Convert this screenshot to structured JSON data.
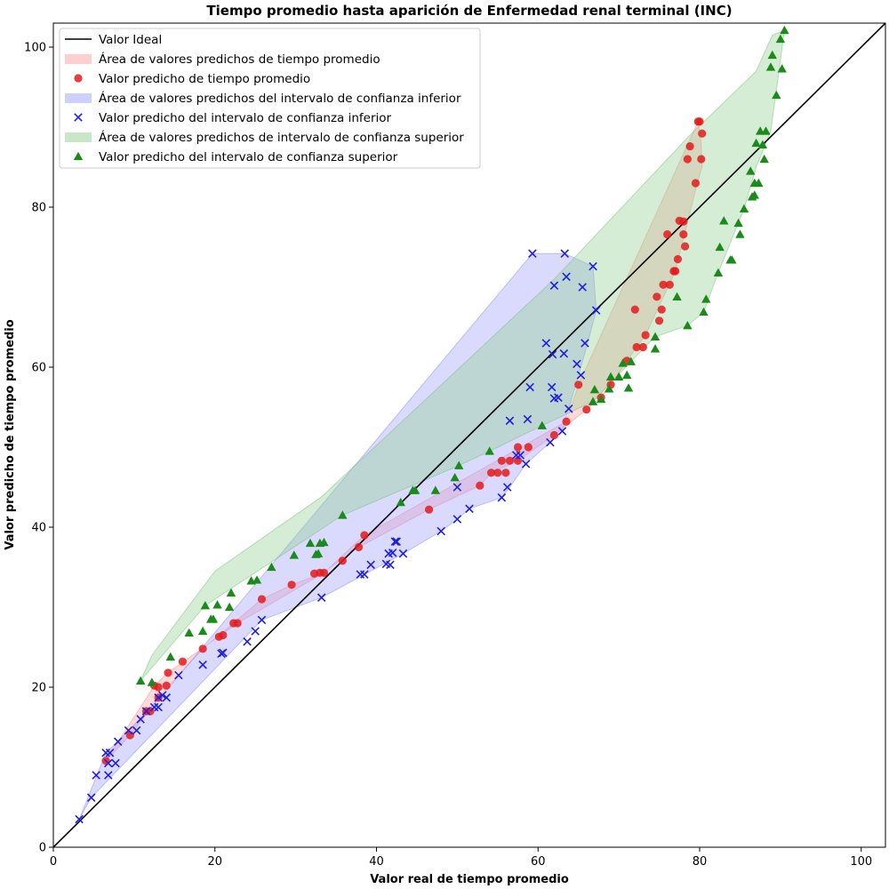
{
  "chart_data": {
    "type": "scatter",
    "title": "Tiempo promedio hasta aparición de Enfermedad renal terminal (INC)",
    "xlabel": "Valor real de tiempo promedio",
    "ylabel": "Valor predicho de tiempo promedio",
    "xlim": [
      0,
      103
    ],
    "ylim": [
      0,
      103
    ],
    "xticks": [
      0,
      20,
      40,
      60,
      80,
      100
    ],
    "yticks": [
      0,
      20,
      40,
      60,
      80,
      100
    ],
    "grid": false,
    "legend_position": "top-left",
    "colors": {
      "ideal": "#000000",
      "mean": "#e41a1c",
      "lower": "#1f1fe0",
      "upper": "#1a8a1a",
      "mean_area": "#ff9f9f",
      "lower_area": "#9f9fff",
      "upper_area": "#8fd08f"
    },
    "legend": [
      {
        "key": "ideal",
        "label": "Valor Ideal",
        "kind": "line"
      },
      {
        "key": "mean_area",
        "label": "Área de valores predichos de tiempo promedio",
        "kind": "patch"
      },
      {
        "key": "mean",
        "label": "Valor predicho de tiempo promedio",
        "kind": "circle"
      },
      {
        "key": "lower_area",
        "label": "Área de valores predichos del intervalo de confianza inferior",
        "kind": "patch"
      },
      {
        "key": "lower",
        "label": "Valor predicho del intervalo de confianza inferior",
        "kind": "cross"
      },
      {
        "key": "upper_area",
        "label": "Área de valores predichos de intervalo de confianza superior",
        "kind": "patch"
      },
      {
        "key": "upper",
        "label": "Valor predicho del intervalo de confianza superior",
        "kind": "triangle"
      }
    ],
    "ideal_line": [
      [
        0,
        0
      ],
      [
        103,
        103
      ]
    ],
    "series": [
      {
        "name": "Valor predicho de tiempo promedio",
        "marker": "circle",
        "points": [
          [
            6.5,
            10.8
          ],
          [
            9.5,
            14
          ],
          [
            11.5,
            17
          ],
          [
            12,
            17
          ],
          [
            12.5,
            20.2
          ],
          [
            13,
            18.7
          ],
          [
            13,
            20
          ],
          [
            14,
            20.2
          ],
          [
            14.2,
            21.8
          ],
          [
            16,
            23.2
          ],
          [
            18.5,
            24.8
          ],
          [
            20.5,
            26.3
          ],
          [
            21,
            26.5
          ],
          [
            22.3,
            28
          ],
          [
            22.8,
            28
          ],
          [
            25.8,
            31
          ],
          [
            29.5,
            32.8
          ],
          [
            32.3,
            34.2
          ],
          [
            33,
            34.3
          ],
          [
            33.5,
            34.3
          ],
          [
            35.8,
            35.8
          ],
          [
            37.8,
            37.5
          ],
          [
            38.5,
            39
          ],
          [
            46.5,
            42.2
          ],
          [
            52.8,
            45.2
          ],
          [
            54.2,
            46.8
          ],
          [
            55,
            46.8
          ],
          [
            55.5,
            48.3
          ],
          [
            56,
            46.8
          ],
          [
            56.5,
            48.3
          ],
          [
            57.5,
            50
          ],
          [
            57.5,
            48.3
          ],
          [
            58.8,
            50
          ],
          [
            62,
            51.5
          ],
          [
            63.5,
            53.2
          ],
          [
            65,
            57.8
          ],
          [
            66,
            54.7
          ],
          [
            67.8,
            56.2
          ],
          [
            69,
            57.8
          ],
          [
            71,
            60.8
          ],
          [
            72,
            67.2
          ],
          [
            72.2,
            62.5
          ],
          [
            73,
            62.5
          ],
          [
            73.3,
            64
          ],
          [
            74.7,
            68.8
          ],
          [
            75,
            65.8
          ],
          [
            75.3,
            67.2
          ],
          [
            75.5,
            70.3
          ],
          [
            76,
            76.6
          ],
          [
            76.3,
            70.3
          ],
          [
            76.8,
            72
          ],
          [
            77,
            72
          ],
          [
            77.3,
            73.5
          ],
          [
            77.5,
            78.3
          ],
          [
            78,
            78.2
          ],
          [
            78,
            76.6
          ],
          [
            78.2,
            75.1
          ],
          [
            78.5,
            86
          ],
          [
            78.8,
            87.6
          ],
          [
            79.5,
            83
          ],
          [
            79.8,
            90.7
          ],
          [
            80,
            90.7
          ],
          [
            80.2,
            86
          ],
          [
            80.3,
            89.2
          ]
        ]
      },
      {
        "name": "Valor predicho del intervalo de confianza inferior",
        "marker": "cross",
        "points": [
          [
            3.2,
            3.5
          ],
          [
            4.7,
            6.2
          ],
          [
            5.3,
            9
          ],
          [
            6.5,
            11.8
          ],
          [
            6.8,
            9
          ],
          [
            6.8,
            10.5
          ],
          [
            7,
            11.8
          ],
          [
            7.7,
            10.5
          ],
          [
            8,
            13.2
          ],
          [
            9.3,
            14.6
          ],
          [
            10.3,
            14.6
          ],
          [
            10.8,
            16
          ],
          [
            11.5,
            17
          ],
          [
            12.5,
            17.5
          ],
          [
            13,
            18.7
          ],
          [
            13,
            17.5
          ],
          [
            13.5,
            19
          ],
          [
            14,
            18.7
          ],
          [
            15.5,
            21.5
          ],
          [
            18.5,
            22.8
          ],
          [
            20.8,
            24.2
          ],
          [
            21,
            24.3
          ],
          [
            24,
            25.7
          ],
          [
            25,
            27
          ],
          [
            25.8,
            28.4
          ],
          [
            33.2,
            31.2
          ],
          [
            38,
            34.1
          ],
          [
            38.5,
            34.1
          ],
          [
            39.3,
            35.3
          ],
          [
            41.2,
            35.4
          ],
          [
            41.5,
            36.7
          ],
          [
            41.7,
            35.3
          ],
          [
            42,
            36.8
          ],
          [
            42.3,
            38.2
          ],
          [
            42.5,
            38.2
          ],
          [
            43.3,
            36.7
          ],
          [
            48,
            39.5
          ],
          [
            50,
            41
          ],
          [
            51.5,
            42.3
          ],
          [
            50,
            45
          ],
          [
            55.5,
            43.7
          ],
          [
            56.2,
            45
          ],
          [
            56.5,
            53.3
          ],
          [
            57.3,
            49
          ],
          [
            57.8,
            49
          ],
          [
            58.5,
            47.9
          ],
          [
            58.7,
            53.5
          ],
          [
            59,
            57.5
          ],
          [
            59.3,
            74.2
          ],
          [
            61,
            63
          ],
          [
            61.5,
            50.6
          ],
          [
            61.7,
            57.5
          ],
          [
            61.8,
            61.6
          ],
          [
            62,
            70.2
          ],
          [
            62,
            56.1
          ],
          [
            62.5,
            56.2
          ],
          [
            63,
            52
          ],
          [
            63.2,
            61.7
          ],
          [
            63.3,
            74.2
          ],
          [
            63.5,
            71.3
          ],
          [
            63.8,
            54.8
          ],
          [
            64.8,
            60.4
          ],
          [
            65.3,
            59
          ],
          [
            65.5,
            70
          ],
          [
            65.8,
            63
          ],
          [
            66.8,
            72.6
          ],
          [
            67.2,
            67.1
          ]
        ]
      },
      {
        "name": "Valor predicho del intervalo de confianza superior",
        "marker": "triangle",
        "points": [
          [
            10.8,
            20.8
          ],
          [
            12.2,
            20.6
          ],
          [
            14.5,
            23.8
          ],
          [
            16.8,
            26.8
          ],
          [
            18.5,
            27
          ],
          [
            18.8,
            30.2
          ],
          [
            19.5,
            28.5
          ],
          [
            19.8,
            28.5
          ],
          [
            20.3,
            30.3
          ],
          [
            21.8,
            30
          ],
          [
            22,
            31.8
          ],
          [
            24.5,
            33.3
          ],
          [
            25.2,
            33.4
          ],
          [
            27,
            35
          ],
          [
            29.8,
            36.5
          ],
          [
            31.8,
            38
          ],
          [
            32.5,
            36.6
          ],
          [
            32.8,
            36.7
          ],
          [
            33,
            38
          ],
          [
            33.5,
            38.1
          ],
          [
            35.8,
            41.5
          ],
          [
            43,
            43.1
          ],
          [
            44.5,
            44.6
          ],
          [
            44.8,
            44.6
          ],
          [
            47.3,
            44.6
          ],
          [
            49.7,
            46.2
          ],
          [
            50.2,
            47.7
          ],
          [
            54,
            49.5
          ],
          [
            60.5,
            52.7
          ],
          [
            66.8,
            55.7
          ],
          [
            67,
            57.2
          ],
          [
            67.8,
            56
          ],
          [
            68.8,
            57.3
          ],
          [
            69,
            58.8
          ],
          [
            70,
            58.8
          ],
          [
            70.5,
            60.5
          ],
          [
            71,
            59
          ],
          [
            71.2,
            57.4
          ],
          [
            71.5,
            60.7
          ],
          [
            74.5,
            62.3
          ],
          [
            74.5,
            63.8
          ],
          [
            77.2,
            68.8
          ],
          [
            78.5,
            65.2
          ],
          [
            80.5,
            66.9
          ],
          [
            80.8,
            68.5
          ],
          [
            82.3,
            71.8
          ],
          [
            82.5,
            75
          ],
          [
            83,
            78.3
          ],
          [
            83.8,
            73.4
          ],
          [
            84,
            73.4
          ],
          [
            84.8,
            78
          ],
          [
            85,
            76.6
          ],
          [
            85.5,
            79.8
          ],
          [
            86.3,
            84.5
          ],
          [
            86.5,
            81.3
          ],
          [
            86.8,
            83
          ],
          [
            86.8,
            81.5
          ],
          [
            87,
            88
          ],
          [
            87.3,
            83
          ],
          [
            87.5,
            89.5
          ],
          [
            87.8,
            87.8
          ],
          [
            88,
            86
          ],
          [
            88.2,
            89.5
          ],
          [
            88.8,
            97.5
          ],
          [
            89,
            99
          ],
          [
            89.5,
            94
          ],
          [
            90,
            101
          ],
          [
            90.2,
            97.3
          ],
          [
            90.5,
            102.1
          ]
        ]
      }
    ],
    "areas": [
      {
        "name": "Área de valores predichos de tiempo promedio",
        "key": "mean_area",
        "polygon": [
          [
            6.5,
            10.8
          ],
          [
            12.5,
            20.2
          ],
          [
            14.2,
            21.8
          ],
          [
            22.8,
            28
          ],
          [
            33.5,
            34.3
          ],
          [
            38.5,
            39
          ],
          [
            63.5,
            53.2
          ],
          [
            65,
            57.8
          ],
          [
            79.8,
            90.7
          ],
          [
            80.2,
            88
          ],
          [
            80.3,
            85
          ],
          [
            79.7,
            83
          ],
          [
            77,
            72
          ],
          [
            73.3,
            64
          ],
          [
            71,
            60.8
          ],
          [
            69,
            57.8
          ],
          [
            67.8,
            56.2
          ],
          [
            66,
            54.7
          ],
          [
            62,
            51.5
          ],
          [
            57.5,
            48.3
          ],
          [
            54.2,
            46.8
          ],
          [
            52.8,
            45.2
          ],
          [
            46.5,
            42.2
          ],
          [
            37.8,
            37.5
          ],
          [
            33.2,
            34.2
          ],
          [
            29.5,
            32.8
          ],
          [
            25.8,
            31
          ],
          [
            18.5,
            24.8
          ],
          [
            13,
            18.7
          ],
          [
            9.5,
            14
          ]
        ]
      },
      {
        "name": "Área de valores predichos del intervalo de confianza inferior",
        "key": "lower_area",
        "polygon": [
          [
            3.2,
            3.5
          ],
          [
            6.5,
            11.8
          ],
          [
            8,
            13.2
          ],
          [
            13.5,
            19
          ],
          [
            59.3,
            74.2
          ],
          [
            63.3,
            74.2
          ],
          [
            66.8,
            72.6
          ],
          [
            67.2,
            67.1
          ],
          [
            66,
            62.5
          ],
          [
            63,
            52
          ],
          [
            61.5,
            50.6
          ],
          [
            58.5,
            47.9
          ],
          [
            56.5,
            45
          ],
          [
            55.5,
            43.7
          ],
          [
            51.5,
            42.3
          ],
          [
            50,
            41
          ],
          [
            48,
            39.5
          ],
          [
            43.3,
            36.7
          ],
          [
            33.2,
            31.2
          ],
          [
            25.8,
            28.4
          ],
          [
            4.7,
            6.2
          ]
        ]
      },
      {
        "name": "Área de valores predichos de intervalo de confianza superior",
        "key": "upper_area",
        "polygon": [
          [
            10.8,
            20.8
          ],
          [
            18.8,
            30.2
          ],
          [
            35.8,
            41.5
          ],
          [
            50.2,
            47.7
          ],
          [
            54,
            49.5
          ],
          [
            60.5,
            52.7
          ],
          [
            66.8,
            55.7
          ],
          [
            71.5,
            60.7
          ],
          [
            74.5,
            63.8
          ],
          [
            78.5,
            65.2
          ],
          [
            80.5,
            66.9
          ],
          [
            82.3,
            71.8
          ],
          [
            85.5,
            79.8
          ],
          [
            87,
            85
          ],
          [
            88.8,
            89.5
          ],
          [
            90.5,
            102.1
          ],
          [
            89,
            101.5
          ],
          [
            87,
            97
          ],
          [
            78.8,
            89
          ],
          [
            62,
            71
          ],
          [
            33.2,
            43.8
          ],
          [
            20,
            34.5
          ],
          [
            12.2,
            24
          ]
        ]
      }
    ]
  }
}
